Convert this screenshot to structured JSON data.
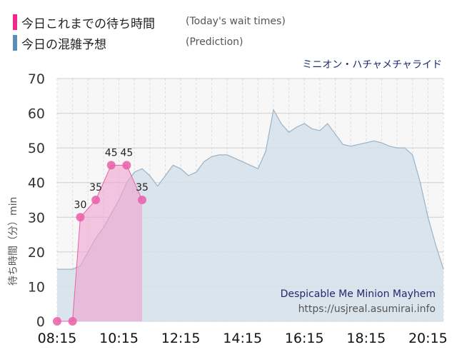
{
  "legend": {
    "today_label": "今日これまでの待ち時間",
    "today_sub": "(Today's wait times)",
    "pred_label": "今日の混雑予想",
    "pred_sub": "(Prediction)"
  },
  "colors": {
    "today": "#f0278c",
    "prediction": "#5b8db8",
    "pred_fill": "#d5e1ea",
    "pred_line": "#9bb3c6",
    "today_fill": "#f0a2cf",
    "today_point": "#e860a8",
    "title_color": "#1f2a6e"
  },
  "chart_data": {
    "type": "area",
    "attraction_jp": "ミニオン・ハチャメチャライド",
    "attraction_en": "Despicable Me Minion Mayhem",
    "source_url": "https://usjreal.asumirai.info",
    "ylabel": "待ち時間（分）min",
    "ylim": [
      0,
      70
    ],
    "yticks": [
      0,
      10,
      20,
      30,
      40,
      50,
      60,
      70
    ],
    "xlim": [
      "08:15",
      "20:45"
    ],
    "xticks": [
      "08:15",
      "10:15",
      "12:15",
      "14:15",
      "16:15",
      "18:15",
      "20:15"
    ],
    "grid": true,
    "series": [
      {
        "name": "Prediction",
        "x": [
          "08:15",
          "08:45",
          "09:00",
          "09:15",
          "09:30",
          "09:45",
          "10:00",
          "10:15",
          "10:30",
          "10:45",
          "11:00",
          "11:15",
          "11:30",
          "11:45",
          "12:00",
          "12:15",
          "12:30",
          "12:45",
          "13:00",
          "13:15",
          "13:30",
          "13:45",
          "14:00",
          "14:15",
          "14:30",
          "14:45",
          "15:00",
          "15:15",
          "15:30",
          "15:45",
          "16:00",
          "16:15",
          "16:30",
          "16:45",
          "17:00",
          "17:15",
          "17:30",
          "17:45",
          "18:00",
          "18:15",
          "18:30",
          "18:45",
          "19:00",
          "19:15",
          "19:30",
          "19:45",
          "20:00",
          "20:15",
          "20:30",
          "20:45"
        ],
        "values": [
          15,
          15,
          16,
          20,
          24,
          27,
          31,
          35,
          40,
          43,
          44,
          42,
          39,
          42,
          45,
          44,
          42,
          43,
          46,
          47.5,
          48,
          48,
          47,
          46,
          45,
          44,
          49,
          61,
          57,
          54.5,
          56,
          57,
          55.5,
          55,
          57,
          54,
          51,
          50.5,
          51,
          51.5,
          52,
          51.5,
          50.5,
          50,
          50,
          48,
          40,
          30,
          22,
          15
        ]
      },
      {
        "name": "Today",
        "x": [
          "08:15",
          "08:45",
          "09:00",
          "09:30",
          "10:00",
          "10:30",
          "11:00"
        ],
        "values": [
          0,
          0,
          30,
          35,
          45,
          45,
          35
        ],
        "labels": [
          "",
          "",
          "30",
          "35",
          "45",
          "45",
          "35"
        ]
      }
    ]
  }
}
